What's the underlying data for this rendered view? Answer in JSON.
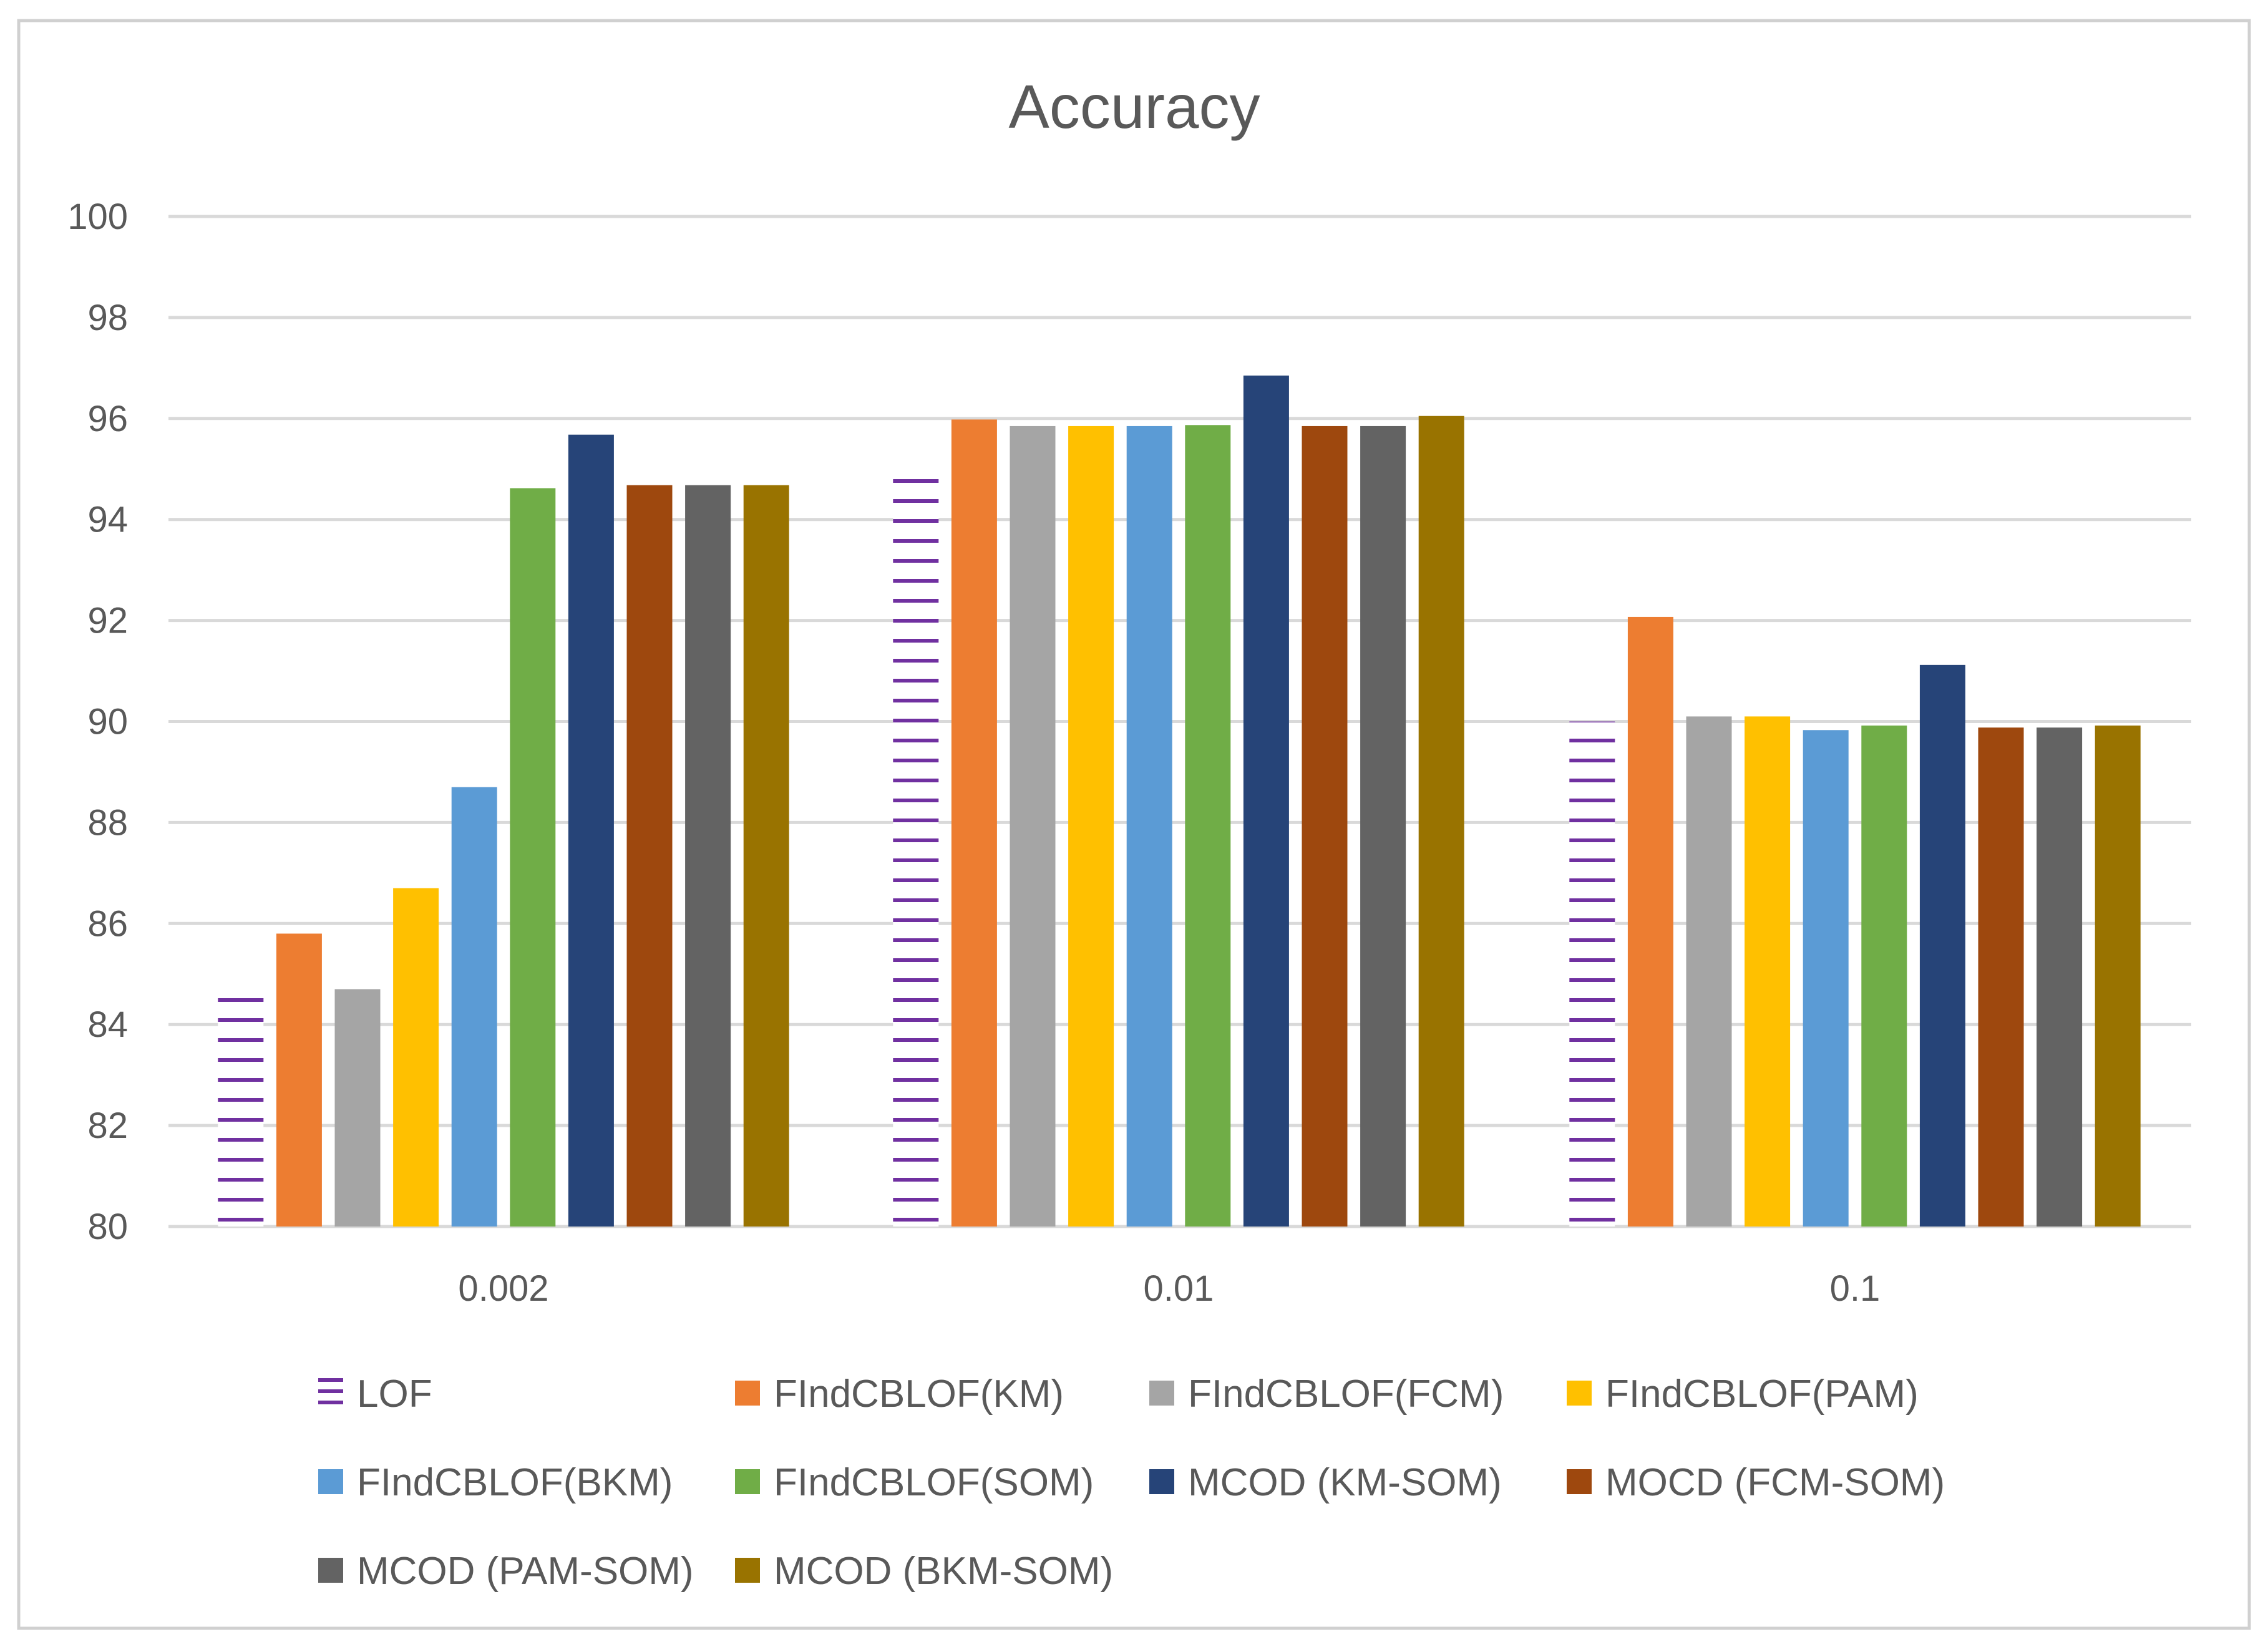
{
  "chart_data": {
    "type": "bar",
    "title": "Accuracy",
    "xlabel": "",
    "ylabel": "",
    "categories": [
      "0.002",
      "0.01",
      "0.1"
    ],
    "ylim": [
      80,
      100
    ],
    "yticks": [
      80,
      82,
      84,
      86,
      88,
      90,
      92,
      94,
      96,
      98,
      100
    ],
    "grid": true,
    "legend_position": "bottom",
    "series": [
      {
        "name": "LOF",
        "values": [
          84.7,
          94.95,
          90.0
        ],
        "color": "#7030a0",
        "pattern": "horizontal-lines"
      },
      {
        "name": "FIndCBLOF(KM)",
        "values": [
          85.8,
          95.98,
          92.07
        ],
        "color": "#ed7d31"
      },
      {
        "name": "FIndCBLOF(FCM)",
        "values": [
          84.7,
          95.85,
          90.1
        ],
        "color": "#a5a5a5"
      },
      {
        "name": "FIndCBLOF(PAM)",
        "values": [
          86.7,
          95.85,
          90.1
        ],
        "color": "#ffc000"
      },
      {
        "name": "FIndCBLOF(BKM)",
        "values": [
          88.7,
          95.85,
          89.83
        ],
        "color": "#5b9bd5"
      },
      {
        "name": "FIndCBLOF(SOM)",
        "values": [
          94.62,
          95.87,
          89.92
        ],
        "color": "#70ad47"
      },
      {
        "name": "MCOD (KM-SOM)",
        "values": [
          95.68,
          96.85,
          91.12
        ],
        "color": "#264478"
      },
      {
        "name": "MOCD (FCM-SOM)",
        "values": [
          94.68,
          95.85,
          89.88
        ],
        "color": "#9e480e"
      },
      {
        "name": "MCOD (PAM-SOM)",
        "values": [
          94.68,
          95.85,
          89.88
        ],
        "color": "#636363"
      },
      {
        "name": "MCOD (BKM-SOM)",
        "values": [
          94.68,
          96.05,
          89.92
        ],
        "color": "#997300"
      }
    ]
  }
}
